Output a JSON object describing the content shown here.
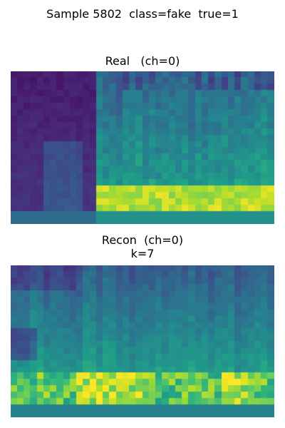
{
  "figure": {
    "suptitle": "Sample 5802  class=fake  true=1"
  },
  "panels": {
    "real": {
      "title": "Real   (ch=0)"
    },
    "recon": {
      "title": "Recon  (ch=0)",
      "subtitle": "k=7"
    }
  },
  "colormap": {
    "name": "viridis",
    "stops": [
      "#440154",
      "#482878",
      "#3e4989",
      "#31688e",
      "#26828e",
      "#1f9e89",
      "#35b779",
      "#6ece58",
      "#b5de2b",
      "#fde725"
    ]
  }
}
